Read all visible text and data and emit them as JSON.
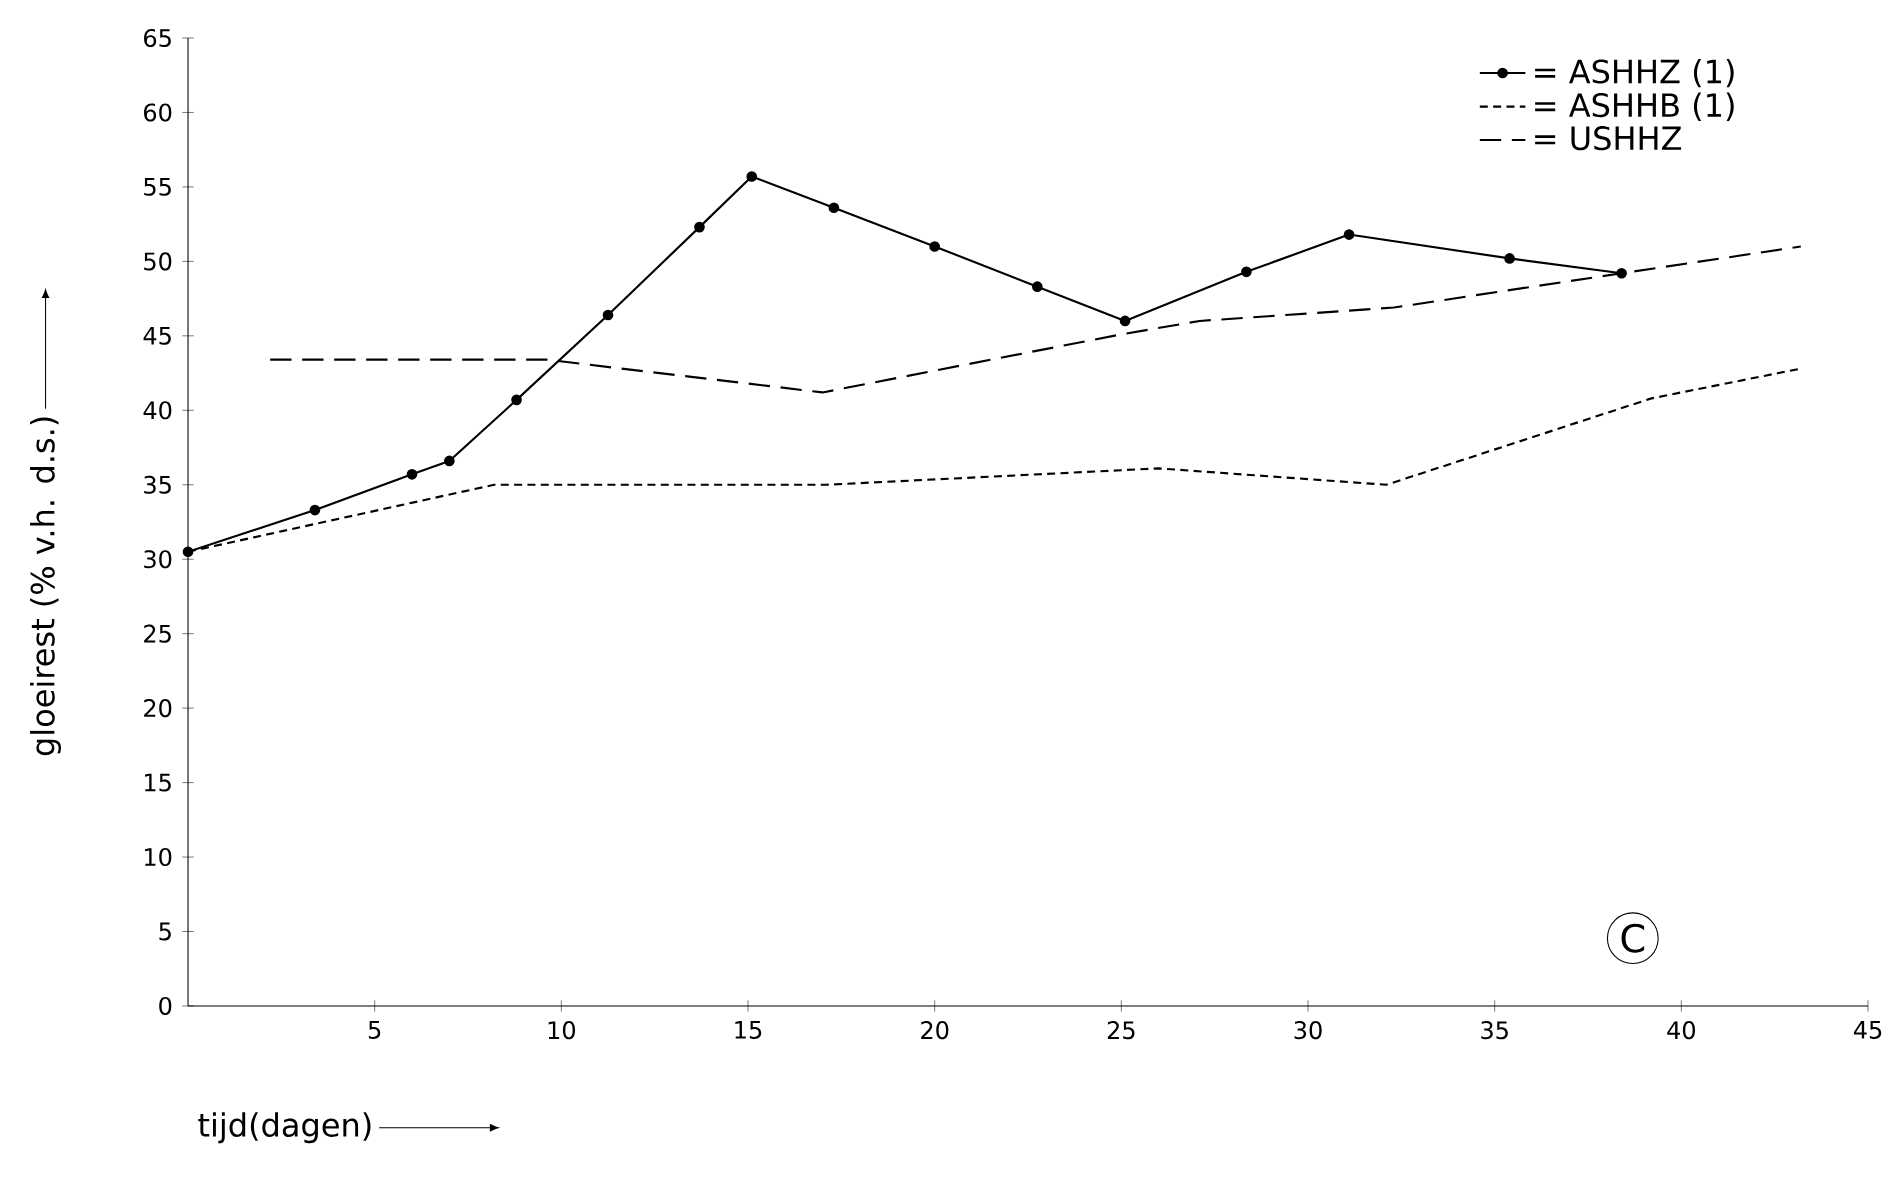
{
  "chart_data": {
    "type": "line",
    "xlabel": "tijd(dagen)",
    "ylabel": "gloeirest (% v.h. d.s.)",
    "xlim": [
      0,
      45
    ],
    "xticks": [
      5,
      10,
      15,
      20,
      25,
      30,
      35,
      40,
      45
    ],
    "ylim": [
      0,
      65
    ],
    "yticks": [
      0,
      5,
      10,
      15,
      20,
      25,
      30,
      35,
      40,
      45,
      50,
      55,
      60,
      65
    ],
    "grid": false,
    "legend": "top right",
    "annotations": [
      "C"
    ],
    "series": [
      {
        "name": "= ASHHZ (1)",
        "color": "#000000",
        "marker": "circle",
        "line_style": "solid",
        "x": [
          0,
          3.4,
          6.0,
          7.0,
          8.8,
          11.25,
          13.7,
          15.1,
          17.3,
          20.0,
          22.75,
          25.1,
          28.35,
          31.1,
          35.4,
          38.4
        ],
        "values": [
          30.5,
          33.3,
          35.7,
          36.6,
          40.7,
          46.4,
          52.3,
          55.7,
          53.6,
          51.0,
          48.3,
          46.0,
          49.3,
          51.8,
          50.2,
          49.2
        ]
      },
      {
        "name": "= ASHHB (1)",
        "color": "#000000",
        "marker": "none",
        "line_style": "dotted",
        "x": [
          0,
          8.2,
          17.1,
          26.0,
          32.1,
          39.2,
          43.2
        ],
        "values": [
          30.5,
          35.0,
          35.0,
          36.1,
          35.0,
          40.8,
          42.8
        ]
      },
      {
        "name": "= USHHZ",
        "color": "#000000",
        "marker": "none",
        "line_style": "dashed",
        "x": [
          2.2,
          9.6,
          17.0,
          25.0,
          27.1,
          32.3,
          38.4,
          43.2
        ],
        "values": [
          43.4,
          43.4,
          41.2,
          45.1,
          46.0,
          46.9,
          49.2,
          51.0
        ]
      }
    ]
  }
}
